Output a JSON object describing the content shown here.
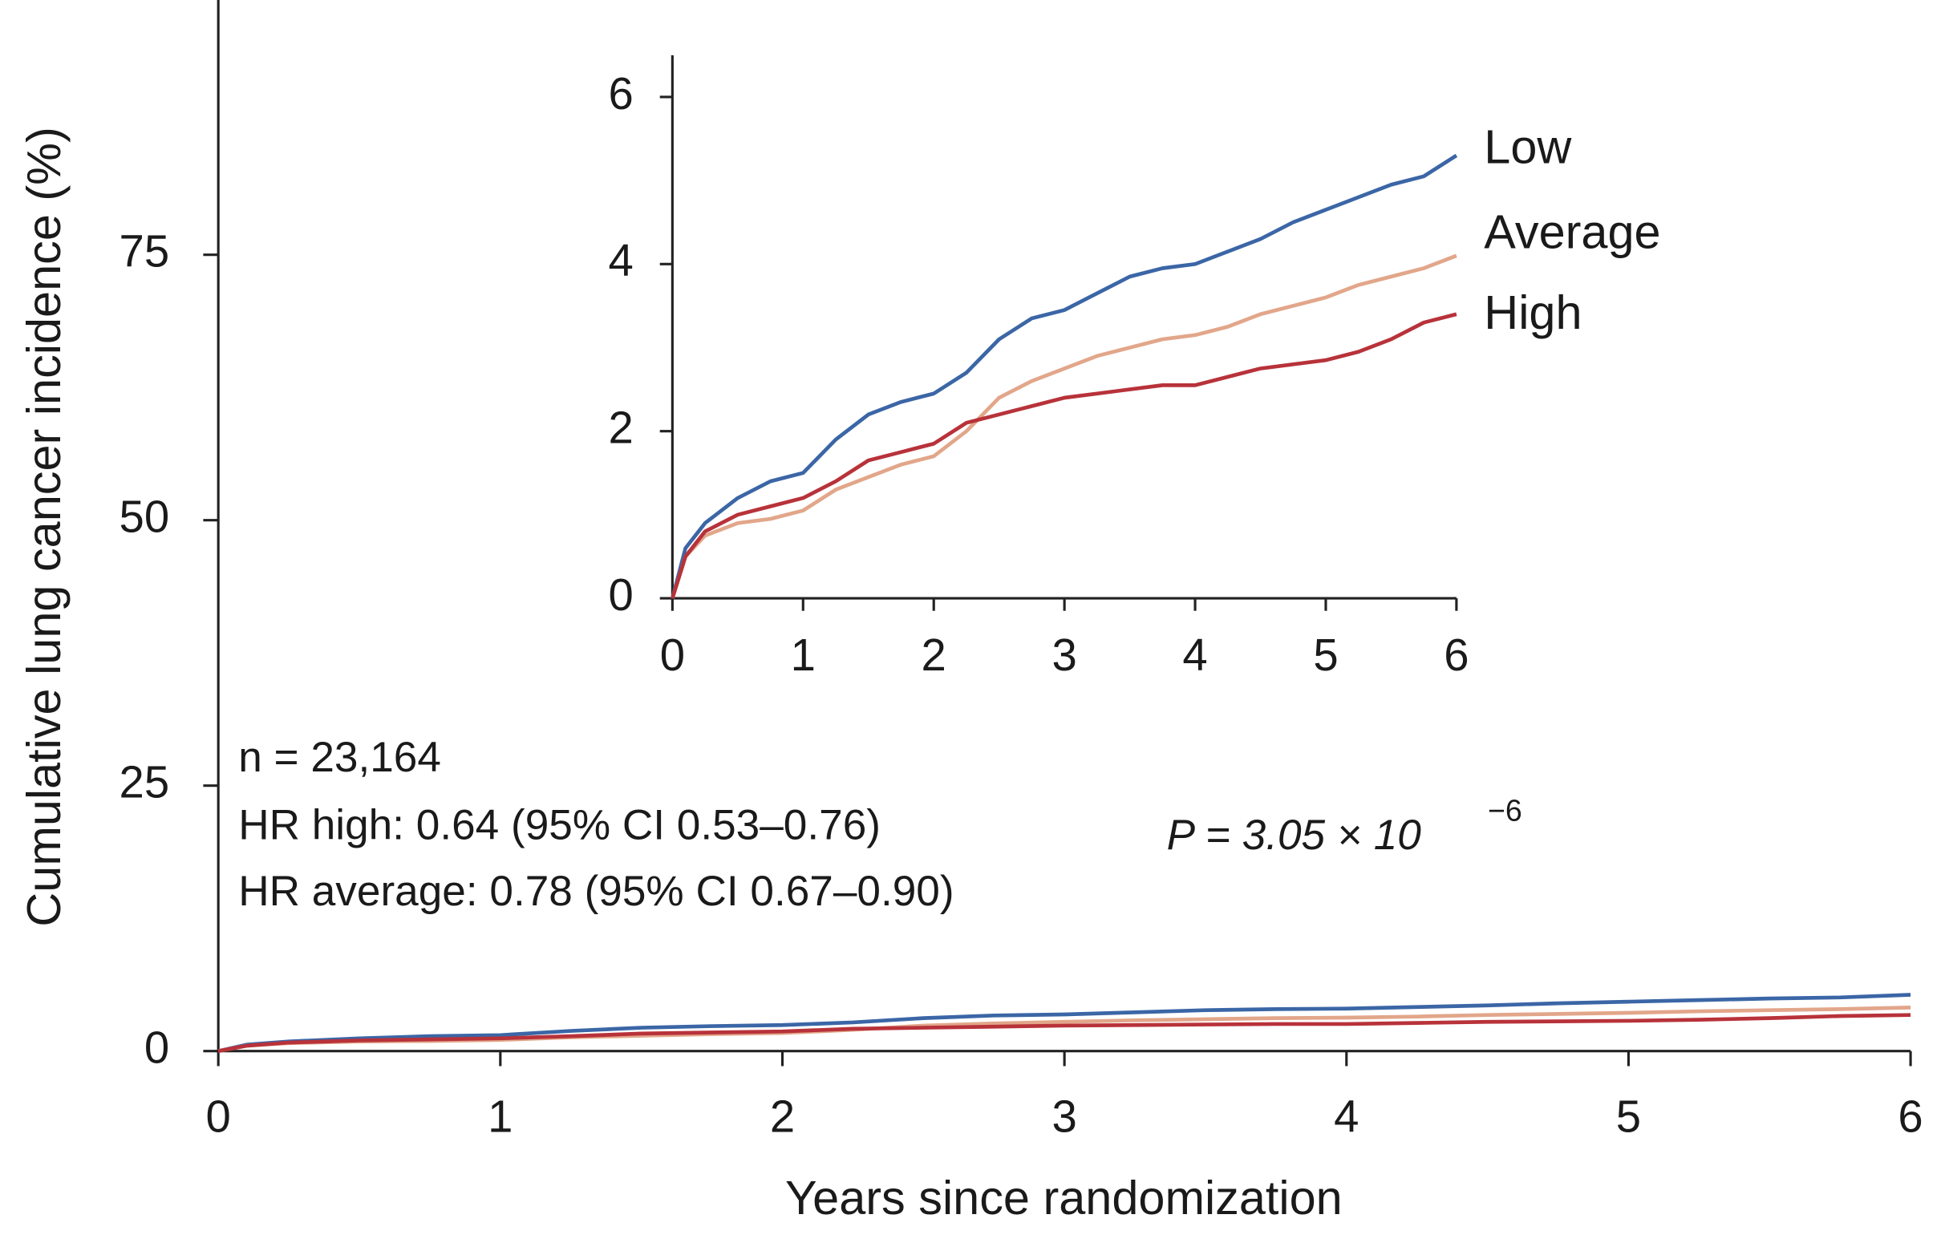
{
  "chart_data": [
    {
      "type": "line",
      "x_label": "Years since randomization",
      "y_label": "Cumulative lung cancer incidence (%)",
      "xlim": [
        0,
        6
      ],
      "xticks": [
        0,
        1,
        2,
        3,
        4,
        5,
        6
      ],
      "ylim": [
        0,
        99
      ],
      "yticks": [
        0,
        25,
        50,
        75
      ],
      "annotations": [
        "n = 23,164",
        "HR high: 0.64 (95% CI 0.53–0.76)",
        "HR average: 0.78 (95% CI 0.67–0.90)"
      ],
      "p_value": {
        "text": "P = 3.05 × 10",
        "exponent": "−6"
      },
      "x": [
        0,
        0.1,
        0.25,
        0.5,
        0.75,
        1,
        1.25,
        1.5,
        1.75,
        2,
        2.25,
        2.5,
        2.75,
        3,
        3.25,
        3.5,
        3.75,
        4,
        4.25,
        4.5,
        4.75,
        5,
        5.25,
        5.5,
        5.75,
        6
      ],
      "series": [
        {
          "color": "#3b66a6",
          "values": [
            0,
            0.6,
            0.9,
            1.2,
            1.4,
            1.5,
            1.9,
            2.2,
            2.35,
            2.45,
            2.7,
            3.1,
            3.35,
            3.45,
            3.65,
            3.85,
            3.95,
            4.0,
            4.15,
            4.3,
            4.5,
            4.65,
            4.8,
            4.95,
            5.05,
            5.3
          ]
        },
        {
          "color": "#e2a68a",
          "values": [
            0,
            0.5,
            0.75,
            0.9,
            0.95,
            1.05,
            1.3,
            1.45,
            1.6,
            1.7,
            2.0,
            2.4,
            2.6,
            2.75,
            2.9,
            3.0,
            3.1,
            3.15,
            3.25,
            3.4,
            3.5,
            3.6,
            3.75,
            3.85,
            3.95,
            4.1
          ]
        },
        {
          "color": "#b8323a",
          "values": [
            0,
            0.5,
            0.8,
            1.0,
            1.1,
            1.2,
            1.4,
            1.65,
            1.75,
            1.85,
            2.1,
            2.2,
            2.3,
            2.4,
            2.45,
            2.5,
            2.55,
            2.55,
            2.65,
            2.75,
            2.8,
            2.85,
            2.95,
            3.1,
            3.3,
            3.4
          ]
        }
      ]
    },
    {
      "type": "line",
      "xlim": [
        0,
        6
      ],
      "xticks": [
        0,
        1,
        2,
        3,
        4,
        5,
        6
      ],
      "ylim": [
        0,
        6.5
      ],
      "yticks": [
        0,
        2,
        4,
        6
      ],
      "x": [
        0,
        0.1,
        0.25,
        0.5,
        0.75,
        1,
        1.25,
        1.5,
        1.75,
        2,
        2.25,
        2.5,
        2.75,
        3,
        3.25,
        3.5,
        3.75,
        4,
        4.25,
        4.5,
        4.75,
        5,
        5.25,
        5.5,
        5.75,
        6
      ],
      "series": [
        {
          "name": "Low",
          "color": "#3b66a6",
          "values": [
            0,
            0.6,
            0.9,
            1.2,
            1.4,
            1.5,
            1.9,
            2.2,
            2.35,
            2.45,
            2.7,
            3.1,
            3.35,
            3.45,
            3.65,
            3.85,
            3.95,
            4.0,
            4.15,
            4.3,
            4.5,
            4.65,
            4.8,
            4.95,
            5.05,
            5.3
          ]
        },
        {
          "name": "Average",
          "color": "#e2a68a",
          "values": [
            0,
            0.5,
            0.75,
            0.9,
            0.95,
            1.05,
            1.3,
            1.45,
            1.6,
            1.7,
            2.0,
            2.4,
            2.6,
            2.75,
            2.9,
            3.0,
            3.1,
            3.15,
            3.25,
            3.4,
            3.5,
            3.6,
            3.75,
            3.85,
            3.95,
            4.1
          ]
        },
        {
          "name": "High",
          "color": "#b8323a",
          "values": [
            0,
            0.5,
            0.8,
            1.0,
            1.1,
            1.2,
            1.4,
            1.65,
            1.75,
            1.85,
            2.1,
            2.2,
            2.3,
            2.4,
            2.45,
            2.5,
            2.55,
            2.55,
            2.65,
            2.75,
            2.8,
            2.85,
            2.95,
            3.1,
            3.3,
            3.4
          ]
        }
      ]
    }
  ]
}
